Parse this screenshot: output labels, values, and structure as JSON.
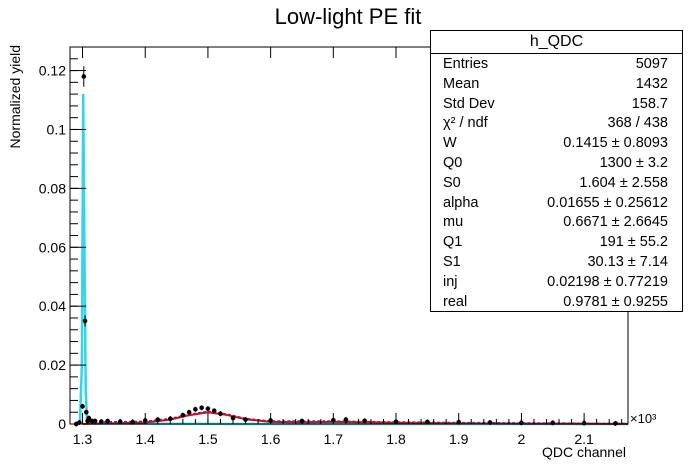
{
  "chart_data": {
    "type": "line",
    "title": "Low-light PE fit",
    "xlabel": "QDC channel",
    "ylabel": "Normalized yield",
    "x_multiplier": "×10³",
    "xlim": [
      1.28,
      2.17
    ],
    "ylim": [
      0,
      0.128
    ],
    "x_ticks": [
      1.3,
      1.4,
      1.5,
      1.6,
      1.7,
      1.8,
      1.9,
      2.0,
      2.1
    ],
    "x_tick_labels": [
      "1.3",
      "1.4",
      "1.5",
      "1.6",
      "1.7",
      "1.8",
      "1.9",
      "2",
      "2.1"
    ],
    "y_ticks": [
      0,
      0.02,
      0.04,
      0.06,
      0.08,
      0.1,
      0.12
    ],
    "y_tick_labels": [
      "0",
      "0.02",
      "0.04",
      "0.06",
      "0.08",
      "0.1",
      "0.12"
    ],
    "colors": {
      "data": "#000000",
      "total_fit": "#1a3cff",
      "pedestal": "#33d6e8",
      "signal": "#cc1111"
    },
    "series": [
      {
        "role": "data",
        "x": [
          1.29,
          1.295,
          1.3,
          1.302,
          1.304,
          1.306,
          1.308,
          1.31,
          1.315,
          1.32,
          1.33,
          1.34,
          1.36,
          1.38,
          1.4,
          1.42,
          1.44,
          1.46,
          1.47,
          1.48,
          1.49,
          1.5,
          1.51,
          1.52,
          1.54,
          1.56,
          1.6,
          1.65,
          1.7,
          1.72,
          1.75,
          1.8,
          1.85,
          1.9,
          1.95,
          2.0,
          2.05,
          2.1,
          2.15
        ],
        "y": [
          0.0,
          0.0005,
          0.006,
          0.118,
          0.035,
          0.004,
          0.001,
          0.002,
          0.001,
          0.001,
          0.0008,
          0.001,
          0.0008,
          0.0006,
          0.0012,
          0.0015,
          0.0018,
          0.003,
          0.004,
          0.005,
          0.0055,
          0.0052,
          0.0045,
          0.0035,
          0.002,
          0.0015,
          0.0012,
          0.001,
          0.0013,
          0.0015,
          0.0011,
          0.0008,
          0.0007,
          0.0006,
          0.0005,
          0.0004,
          0.0004,
          0.0003,
          0.0002
        ]
      },
      {
        "role": "total_fit",
        "x": [
          1.29,
          1.296,
          1.299,
          1.301,
          1.303,
          1.305,
          1.307,
          1.31,
          1.32,
          1.4,
          1.44,
          1.47,
          1.5,
          1.53,
          1.56,
          1.6,
          1.7,
          1.8,
          1.9,
          2.0,
          2.1,
          2.17
        ],
        "y": [
          0.0,
          0.001,
          0.02,
          0.112,
          0.06,
          0.012,
          0.002,
          0.0008,
          0.0006,
          0.0008,
          0.0018,
          0.0032,
          0.0042,
          0.0033,
          0.0018,
          0.0009,
          0.0009,
          0.0006,
          0.0004,
          0.0003,
          0.0002,
          0.0001
        ]
      },
      {
        "role": "pedestal",
        "x": [
          1.29,
          1.296,
          1.299,
          1.301,
          1.303,
          1.305,
          1.307,
          1.31,
          1.32,
          1.6,
          2.17
        ],
        "y": [
          0.0,
          0.001,
          0.02,
          0.112,
          0.06,
          0.012,
          0.002,
          0.0004,
          0.0001,
          0.0,
          0.0
        ]
      },
      {
        "role": "signal",
        "x": [
          1.3,
          1.4,
          1.44,
          1.47,
          1.5,
          1.53,
          1.56,
          1.6,
          1.65,
          1.7,
          1.75,
          1.8,
          1.9,
          2.0,
          2.1,
          2.17
        ],
        "y": [
          0.0,
          0.0005,
          0.0015,
          0.003,
          0.004,
          0.0031,
          0.0016,
          0.0007,
          0.0006,
          0.0007,
          0.0006,
          0.0004,
          0.0002,
          0.0001,
          0.0001,
          0.0
        ]
      }
    ]
  },
  "stats": {
    "name": "h_QDC",
    "rows": [
      {
        "k": "Entries",
        "v": "5097"
      },
      {
        "k": "Mean",
        "v": "1432"
      },
      {
        "k": "Std Dev",
        "v": "158.7"
      },
      {
        "k": "χ² / ndf",
        "v": "368 / 438"
      },
      {
        "k": "W",
        "v": "0.1415  ± 0.8093"
      },
      {
        "k": "Q0",
        "v": "1300  ± 3.2"
      },
      {
        "k": "S0",
        "v": "1.604  ± 2.558"
      },
      {
        "k": "alpha",
        "v": "0.01655  ± 0.25612"
      },
      {
        "k": "mu",
        "v": "0.6671  ± 2.6645"
      },
      {
        "k": "Q1",
        "v": "191  ± 55.2"
      },
      {
        "k": "S1",
        "v": "30.13  ± 7.14"
      },
      {
        "k": "inj",
        "v": "0.02198  ± 0.77219"
      },
      {
        "k": "real",
        "v": "0.9781  ± 0.9255"
      }
    ]
  }
}
